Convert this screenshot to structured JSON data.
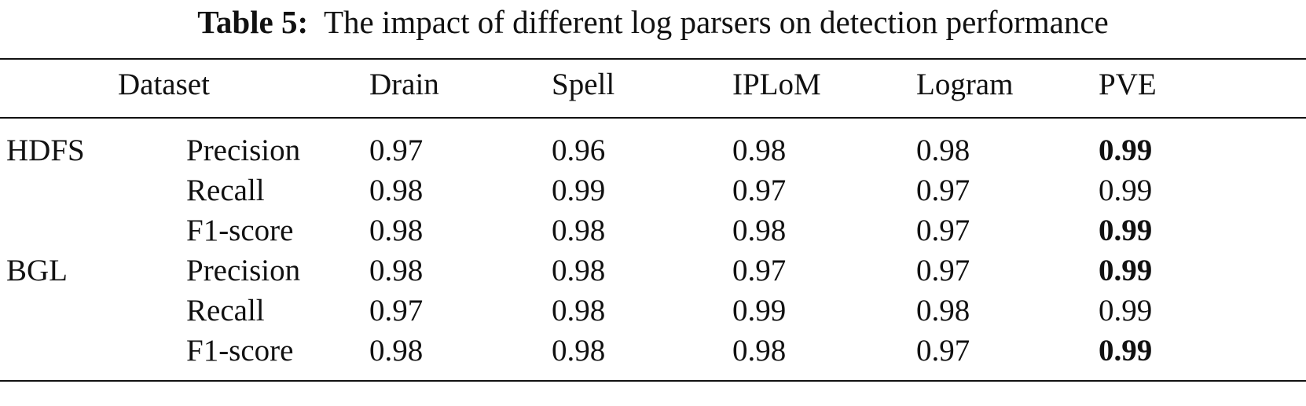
{
  "caption": {
    "label": "Table 5:",
    "text": "The impact of different log parsers on detection performance"
  },
  "table": {
    "header": [
      "Dataset",
      "Drain",
      "Spell",
      "IPLoM",
      "Logram",
      "PVE"
    ],
    "groups": [
      {
        "dataset": "HDFS",
        "rows": [
          {
            "metric": "Precision",
            "values": [
              0.97,
              0.96,
              0.98,
              0.98,
              0.99
            ]
          },
          {
            "metric": "Recall",
            "values": [
              0.98,
              0.99,
              0.97,
              0.97,
              0.99
            ]
          },
          {
            "metric": "F1-score",
            "values": [
              0.98,
              0.98,
              0.98,
              0.97,
              0.99
            ]
          }
        ]
      },
      {
        "dataset": "BGL",
        "rows": [
          {
            "metric": "Precision",
            "values": [
              0.98,
              0.98,
              0.97,
              0.97,
              0.99
            ]
          },
          {
            "metric": "Recall",
            "values": [
              0.97,
              0.98,
              0.99,
              0.98,
              0.99
            ]
          },
          {
            "metric": "F1-score",
            "values": [
              0.98,
              0.98,
              0.98,
              0.97,
              0.99
            ]
          }
        ]
      }
    ]
  }
}
